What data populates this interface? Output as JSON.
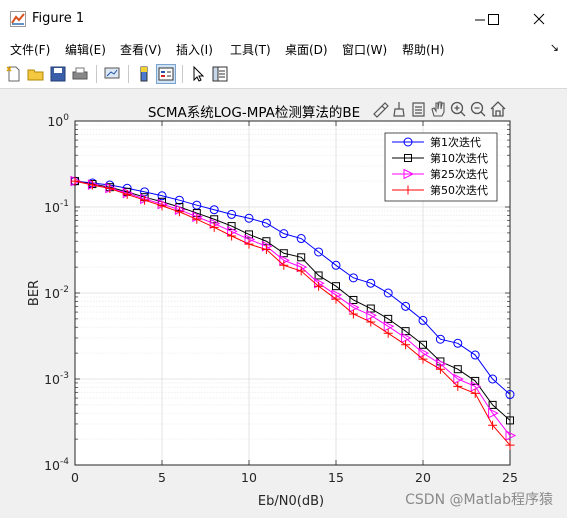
{
  "window": {
    "title": "Figure 1",
    "minimize_glyph": "—",
    "maximize_glyph": "☐",
    "close_glyph": "✕"
  },
  "menu": {
    "items": [
      "文件(F)",
      "编辑(E)",
      "查看(V)",
      "插入(I)",
      "工具(T)",
      "桌面(D)",
      "窗口(W)",
      "帮助(H)"
    ],
    "overflow_glyph": "↘"
  },
  "toolbar": {
    "icons": [
      "new-figure-icon",
      "open-file-icon",
      "save-icon",
      "print-icon",
      "link-plot-icon",
      "colorbar-icon",
      "legend-icon",
      "pointer-icon",
      "property-inspector-icon"
    ]
  },
  "axes_toolbar": {
    "icons": [
      "brush-icon",
      "datatip-icon",
      "save-axes-icon",
      "pan-icon",
      "zoom-in-icon",
      "zoom-out-icon",
      "home-icon"
    ]
  },
  "colors": {
    "series": [
      "#0000ff",
      "#000000",
      "#ff00ff",
      "#ff0000"
    ]
  },
  "chart_data": {
    "type": "line",
    "title": "SCMA系统LOG-MPA检测算法的BE",
    "xlabel": "Eb/N0(dB)",
    "ylabel": "BER",
    "xlim": [
      0,
      25
    ],
    "ylim": [
      0.0001,
      1
    ],
    "yscale": "log",
    "grid": true,
    "minor_grid": true,
    "legend_position": "top-right",
    "x_ticks": [
      "0",
      "5",
      "10",
      "15",
      "20",
      "25"
    ],
    "y_ticks": [
      {
        "base": "10",
        "exp": "0"
      },
      {
        "base": "10",
        "exp": "-1"
      },
      {
        "base": "10",
        "exp": "-2"
      },
      {
        "base": "10",
        "exp": "-3"
      },
      {
        "base": "10",
        "exp": "-4"
      }
    ],
    "x": [
      0,
      1,
      2,
      3,
      4,
      5,
      6,
      7,
      8,
      9,
      10,
      11,
      12,
      13,
      14,
      15,
      16,
      17,
      18,
      19,
      20,
      21,
      22,
      23,
      24,
      25
    ],
    "series": [
      {
        "name": "第1次迭代",
        "marker": "circle",
        "values": [
          0.2,
          0.19,
          0.18,
          0.165,
          0.15,
          0.135,
          0.12,
          0.105,
          0.093,
          0.082,
          0.074,
          0.065,
          0.049,
          0.043,
          0.03,
          0.021,
          0.015,
          0.013,
          0.01,
          0.007,
          0.0048,
          0.0029,
          0.0026,
          0.0019,
          0.001,
          0.00066
        ]
      },
      {
        "name": "第10次迭代",
        "marker": "square",
        "values": [
          0.2,
          0.185,
          0.17,
          0.15,
          0.13,
          0.115,
          0.1,
          0.085,
          0.072,
          0.06,
          0.048,
          0.04,
          0.029,
          0.026,
          0.016,
          0.012,
          0.0083,
          0.0066,
          0.005,
          0.0036,
          0.0025,
          0.0016,
          0.0013,
          0.00095,
          0.0005,
          0.00033
        ]
      },
      {
        "name": "第25次迭代",
        "marker": "triangle-right",
        "values": [
          0.2,
          0.182,
          0.166,
          0.145,
          0.124,
          0.108,
          0.093,
          0.077,
          0.064,
          0.052,
          0.042,
          0.035,
          0.024,
          0.02,
          0.013,
          0.0095,
          0.0068,
          0.0055,
          0.0041,
          0.003,
          0.002,
          0.0015,
          0.001,
          0.00082,
          0.0004,
          0.00022
        ]
      },
      {
        "name": "第50次迭代",
        "marker": "plus",
        "values": [
          0.2,
          0.18,
          0.164,
          0.14,
          0.12,
          0.103,
          0.088,
          0.072,
          0.058,
          0.046,
          0.037,
          0.032,
          0.021,
          0.018,
          0.012,
          0.0085,
          0.0057,
          0.0046,
          0.0034,
          0.0025,
          0.0017,
          0.0013,
          0.00082,
          0.00068,
          0.00029,
          0.00017
        ]
      }
    ]
  },
  "watermark": "CSDN @Matlab程序猿"
}
